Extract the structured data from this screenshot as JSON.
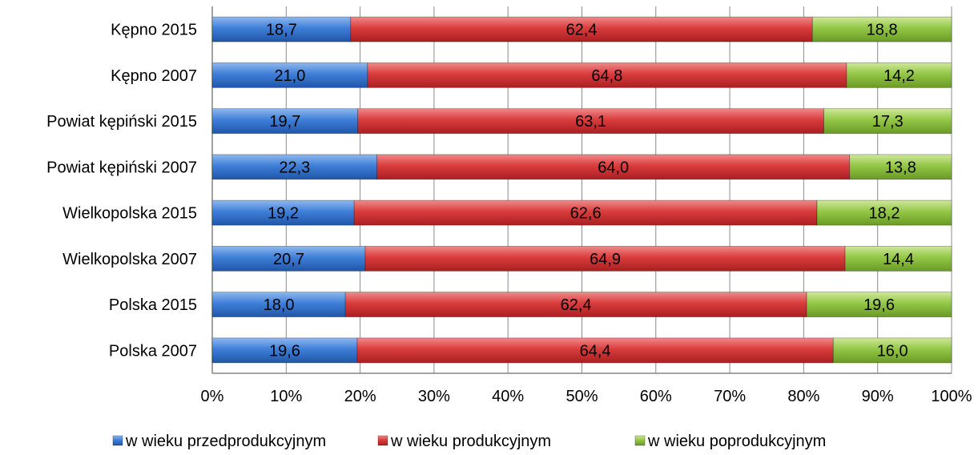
{
  "chart_data": {
    "type": "bar",
    "orientation": "horizontal",
    "stacked": "percent",
    "categories": [
      "Kępno 2015",
      "Kępno 2007",
      "Powiat kępiński 2015",
      "Powiat kępiński 2007",
      "Wielkopolska  2015",
      "Wielkopolska 2007",
      "Polska 2015",
      "Polska 2007"
    ],
    "series": [
      {
        "name": "w wieku przedprodukcyjnym",
        "color": "#3a7bd5",
        "values": [
          18.7,
          21.0,
          19.7,
          22.3,
          19.2,
          20.7,
          18.0,
          19.6
        ],
        "labels": [
          "18,7",
          "21,0",
          "19,7",
          "22,3",
          "19,2",
          "20,7",
          "18,0",
          "19,6"
        ]
      },
      {
        "name": "w wieku produkcyjnym",
        "color": "#d9383a",
        "values": [
          62.4,
          64.8,
          63.1,
          64.0,
          62.6,
          64.9,
          62.4,
          64.4
        ],
        "labels": [
          "62,4",
          "64,8",
          "63,1",
          "64,0",
          "62,6",
          "64,9",
          "62,4",
          "64,4"
        ]
      },
      {
        "name": "w wieku poprodukcyjnym",
        "color": "#92c742",
        "values": [
          18.8,
          14.2,
          17.3,
          13.8,
          18.2,
          14.4,
          19.6,
          16.0
        ],
        "labels": [
          "18,8",
          "14,2",
          "17,3",
          "13,8",
          "18,2",
          "14,4",
          "19,6",
          "16,0"
        ]
      }
    ],
    "xticks": [
      "0%",
      "10%",
      "20%",
      "30%",
      "40%",
      "50%",
      "60%",
      "70%",
      "80%",
      "90%",
      "100%"
    ],
    "xlim": [
      0,
      100
    ],
    "grid": "vertical",
    "legend": "bottom"
  }
}
